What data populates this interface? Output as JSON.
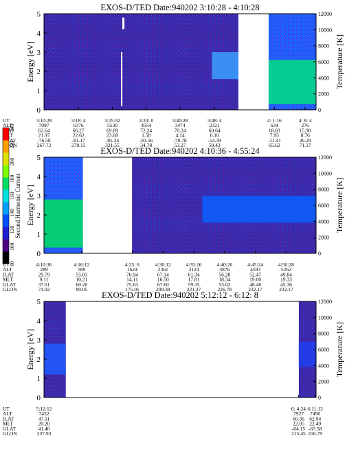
{
  "chart_data": {
    "type": "heatmap",
    "colorbar": {
      "label": "Second Harmonic Current",
      "ticks": [
        "240",
        "220",
        "200",
        "180",
        "160",
        "140",
        "120",
        "100",
        "80"
      ],
      "range": [
        80,
        240
      ],
      "colors": [
        "#000000",
        "#4b0082",
        "#2020d0",
        "#0050ff",
        "#00a0ff",
        "#00e0e0",
        "#00e060",
        "#80ff00",
        "#e0e000",
        "#ffa000",
        "#ff0000"
      ]
    },
    "panels": [
      {
        "title": "EXOS-D/TED   Date:940202  3:10:28 - 4:10:28",
        "ylabel": "Energy [eV]",
        "ylabel2": "Temperature [K]",
        "yticks": [
          "5",
          "4",
          "3",
          "2",
          "1",
          "0"
        ],
        "yticks2": [
          "12000",
          "10000",
          "8000",
          "6000",
          "4000",
          "2000",
          "0"
        ],
        "ylim": [
          0,
          5
        ],
        "ylim2": [
          0,
          12000
        ],
        "time_range_s": [
          11428,
          15028
        ],
        "data_spans": [
          {
            "start_s": 11428,
            "end_s": 14000,
            "base": "#3a2aa8",
            "band_lo": 1.6,
            "band_hi": 3.0,
            "band_start_s": 13650,
            "band_color": "#3aa0ff"
          },
          {
            "start_s": 14400,
            "end_s": 15028,
            "base": "#2060ff",
            "band_lo": 0.3,
            "band_hi": 2.6,
            "band_start_s": 14400,
            "band_color": "#00e080"
          }
        ],
        "gaps": [
          {
            "start_s": 12465,
            "end_s": 12480
          }
        ],
        "labels": [
          "UT",
          "ALT",
          "ILAT",
          "MLT",
          "GLAT",
          "GLON"
        ],
        "columns": [
          {
            "t": 11428,
            "vals": [
              "3:10:28",
              "7097",
              "62.64",
              "21.97",
              "-76.58",
              "267.72"
            ]
          },
          {
            "t": 11884,
            "vals": [
              "3:18: 4",
              "6376",
              "66.27",
              "22.62",
              "-81.17",
              "278.15"
            ]
          },
          {
            "t": 12332,
            "vals": [
              "3:25:32",
              "5530",
              "69.89",
              "23.68",
              "-85.34",
              "321.55"
            ]
          },
          {
            "t": 12780,
            "vals": [
              "3:33: 0",
              "4554",
              "72.24",
              "1.58",
              "-81.56",
              "34.78"
            ]
          },
          {
            "t": 13228,
            "vals": [
              "3:40:28",
              "3474",
              "70.24",
              "4.14",
              "-70.78",
              "53.27"
            ]
          },
          {
            "t": 13684,
            "vals": [
              "3:48: 4",
              "2321",
              "60.64",
              "6.10",
              "-54.39",
              "59.43"
            ]
          },
          {
            "t": 14476,
            "vals": [
              "4: 1:16",
              "634",
              "18.03",
              "7.95",
              "-11.41",
              "65.62"
            ]
          },
          {
            "t": 14884,
            "vals": [
              "4: 8: 4",
              "276",
              "15.90",
              "8.76",
              "26.29",
              "71.37"
            ]
          }
        ]
      },
      {
        "title": "EXOS-D/TED   Date:940202  4:10:36 - 4:55:24",
        "ylabel": "Energy [eV]",
        "ylabel2": "Temperature [K]",
        "yticks": [
          "5",
          "4",
          "3",
          "2",
          "1",
          "0"
        ],
        "yticks2": [
          "12000",
          "10000",
          "8000",
          "6000",
          "4000",
          "2000",
          "0"
        ],
        "ylim": [
          0,
          5
        ],
        "ylim2": [
          0,
          12000
        ],
        "time_range_s": [
          15036,
          17724
        ],
        "data_spans": [
          {
            "start_s": 15036,
            "end_s": 15420,
            "base": "#2060ff",
            "band_lo": 0.3,
            "band_hi": 2.8,
            "band_start_s": 15036,
            "band_color": "#00e060"
          },
          {
            "start_s": 15906,
            "end_s": 17724,
            "base": "#3a2aa8",
            "band_lo": 1.6,
            "band_hi": 3.0,
            "band_start_s": 16600,
            "band_color": "#0a60ff"
          }
        ],
        "gaps": [],
        "labels": [
          "UT",
          "ALT",
          "ILAT",
          "MLT",
          "GLAT",
          "GLON"
        ],
        "columns": [
          {
            "t": 15036,
            "vals": [
              "4:10:36",
              "289",
              "29.79",
              "9.11",
              "37.01",
              "74.92"
            ]
          },
          {
            "t": 15408,
            "vals": [
              "4:16:12",
              "589",
              "55.03",
              "10.21",
              "60.20",
              "89.05"
            ]
          },
          {
            "t": 15908,
            "vals": [
              "4:25: 8",
              "1624",
              "70.94",
              "14.11",
              "75.63",
              "175.01"
            ]
          },
          {
            "t": 16212,
            "vals": [
              "4:30:12",
              "2361",
              "67.14",
              "16.50",
              "67.60",
              "209.38"
            ]
          },
          {
            "t": 16516,
            "vals": [
              "4:35:16",
              "3124",
              "61.34",
              "17.81",
              "59.35",
              "221.27"
            ]
          },
          {
            "t": 16820,
            "vals": [
              "4:40:20",
              "3876",
              "56.28",
              "18.34",
              "53.02",
              "226.78"
            ]
          },
          {
            "t": 17124,
            "vals": [
              "4:45:24",
              "4593",
              "52.47",
              "19.00",
              "48.48",
              "232.17"
            ]
          },
          {
            "t": 17428,
            "vals": [
              "4:50:28",
              "5262",
              "49.84",
              "19.33",
              "45.36",
              "232.17"
            ]
          }
        ]
      },
      {
        "title": "EXOS-D/TED   Date:940202  5:12:12 - 6:12: 8",
        "ylabel": "Energy [eV]",
        "ylabel2": "Temperature [K]",
        "yticks": [
          "5",
          "4",
          "3",
          "2",
          "1",
          "0"
        ],
        "yticks2": [
          "12000",
          "10000",
          "8000",
          "6000",
          "4000",
          "2000",
          "0"
        ],
        "ylim": [
          0,
          5
        ],
        "ylim2": [
          0,
          12000
        ],
        "time_range_s": [
          18732,
          22328
        ],
        "data_spans": [
          {
            "start_s": 18732,
            "end_s": 19020,
            "base": "#3a2aa8",
            "band_lo": 1.2,
            "band_hi": 2.8,
            "band_start_s": 18732,
            "band_color": "#1e5cff"
          },
          {
            "start_s": 22100,
            "end_s": 22328,
            "base": "#3a2aa8",
            "band_lo": 1.6,
            "band_hi": 2.9,
            "band_start_s": 22100,
            "band_color": "#2040f0"
          }
        ],
        "gaps": [],
        "labels": [
          "UT",
          "ALT",
          "ILAT",
          "MLT",
          "GLAT",
          "GLON"
        ],
        "columns": [
          {
            "t": 18732,
            "vals": [
              "5:12:12",
              "7452",
              "47.11",
              "20.20",
              "41.40",
              "237.93"
            ]
          },
          {
            "t": 22096,
            "vals": [
              "6: 4:24",
              "7927",
              "60.36",
              "22.05",
              "-64.15",
              "215.45"
            ]
          },
          {
            "t": 22316,
            "vals": [
              "6:11:12",
              "7490",
              "62.94",
              "22.49",
              "-67.58",
              "216.79"
            ]
          }
        ]
      }
    ]
  }
}
